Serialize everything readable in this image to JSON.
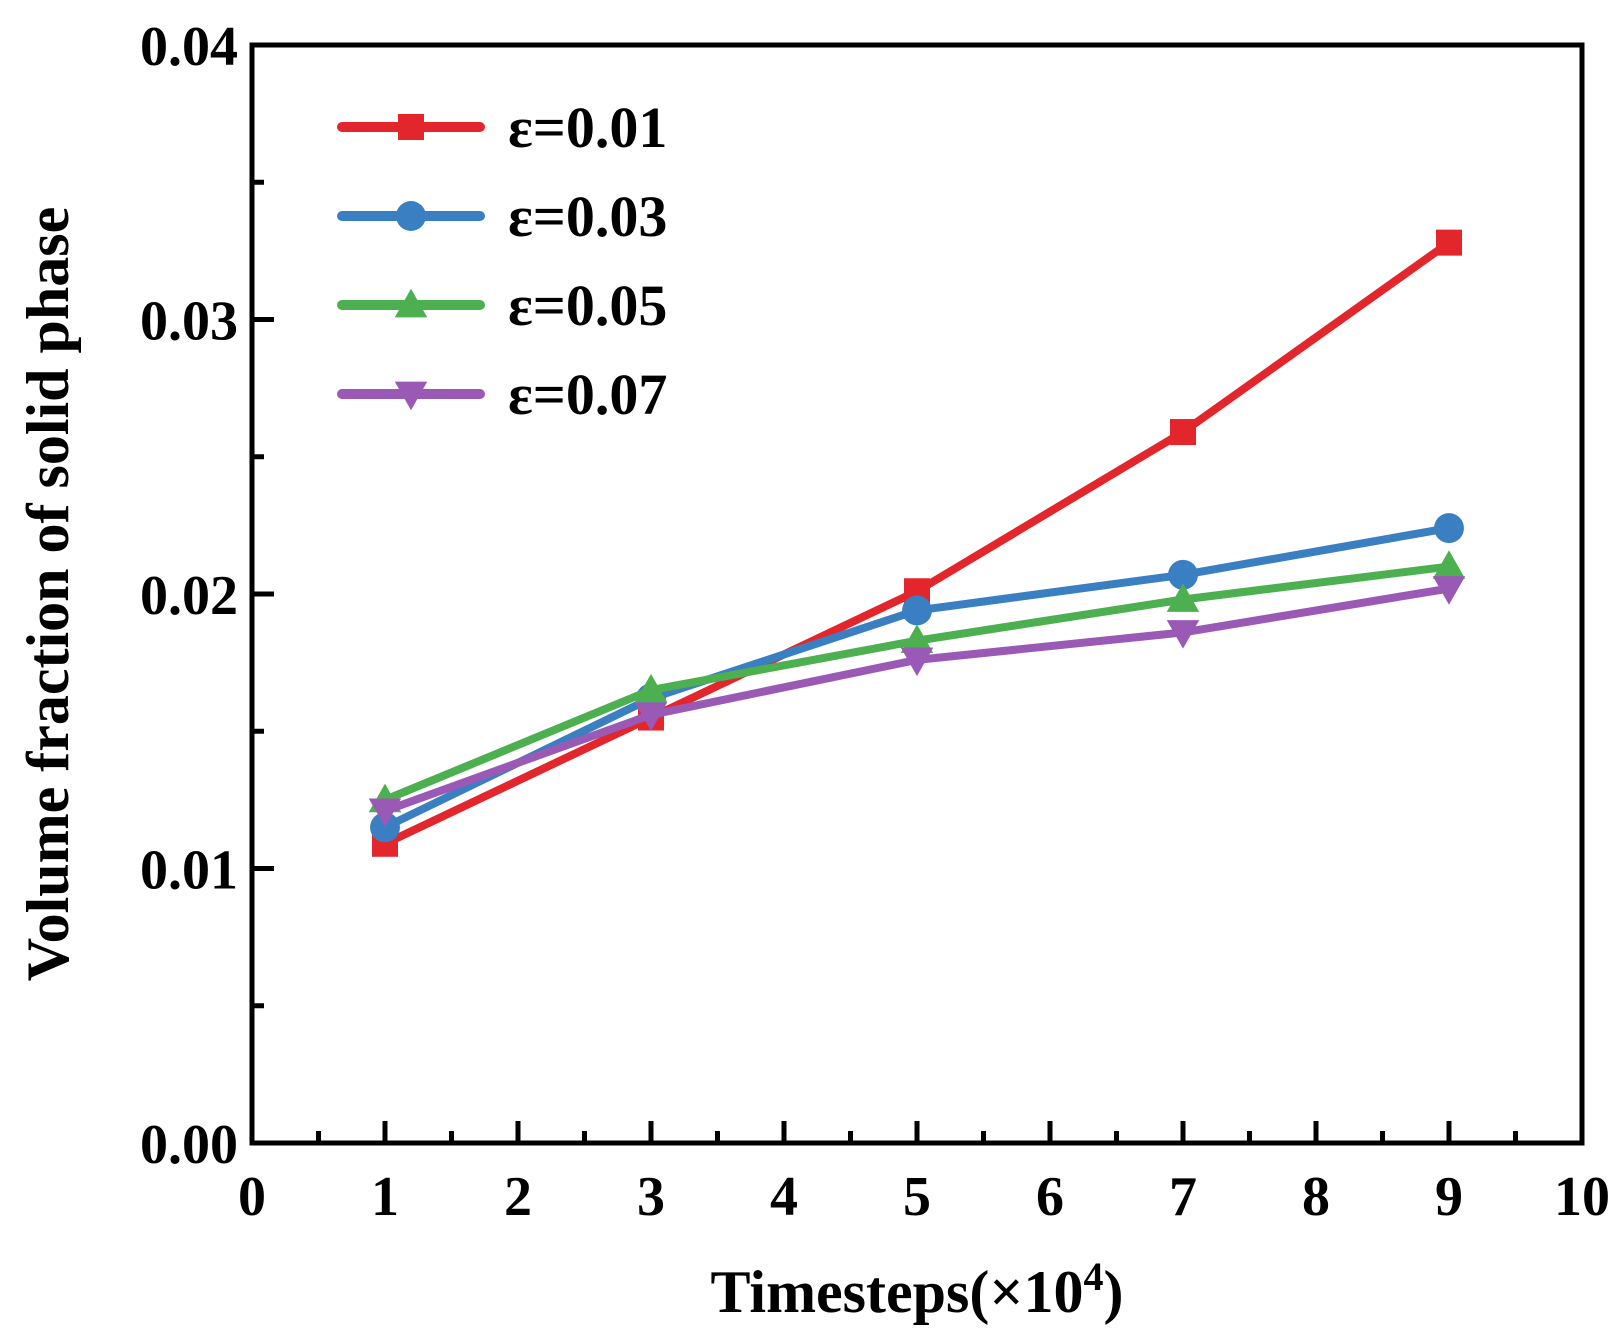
{
  "chart_data": {
    "type": "line",
    "title": "",
    "xlabel": "Timesteps(×10",
    "xlabel_exponent": "4",
    "xlabel_close": ")",
    "ylabel": "Volume fraction of solid phase",
    "xlim": [
      0,
      10
    ],
    "ylim": [
      0,
      0.04
    ],
    "x_ticks": [
      "0",
      "1",
      "2",
      "3",
      "4",
      "5",
      "6",
      "7",
      "8",
      "9",
      "10"
    ],
    "y_ticks": [
      "0.00",
      "0.01",
      "0.02",
      "0.03",
      "0.04"
    ],
    "grid": false,
    "legend_position": "top-left",
    "x": [
      1,
      3,
      5,
      7,
      9
    ],
    "series": [
      {
        "name": "ε=0.01",
        "marker": "square",
        "color": "#e3262b",
        "values": [
          0.0109,
          0.0155,
          0.0201,
          0.0259,
          0.0328
        ]
      },
      {
        "name": "ε=0.03",
        "marker": "circle",
        "color": "#3a7fc1",
        "values": [
          0.0115,
          0.0162,
          0.0194,
          0.0207,
          0.0224
        ]
      },
      {
        "name": "ε=0.05",
        "marker": "triangle-up",
        "color": "#4caf50",
        "values": [
          0.0125,
          0.0165,
          0.0183,
          0.0198,
          0.021
        ]
      },
      {
        "name": "ε=0.07",
        "marker": "triangle-down",
        "color": "#9b59b6",
        "values": [
          0.0121,
          0.0156,
          0.0176,
          0.0186,
          0.0202
        ]
      }
    ]
  }
}
